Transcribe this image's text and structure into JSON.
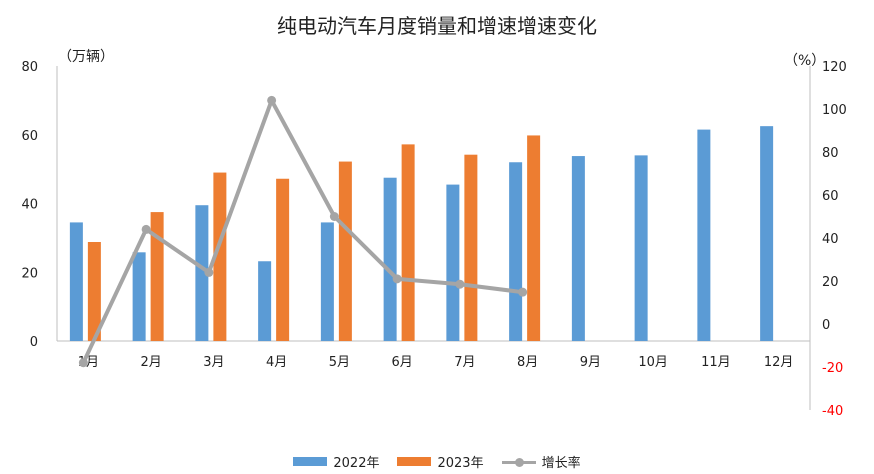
{
  "chart_data": {
    "type": "bar+line",
    "title": "纯电动汽车月度销量和增速增速变化",
    "ylabel_left": "（万辆）",
    "ylabel_right": "（%）",
    "categories": [
      "1月",
      "2月",
      "3月",
      "4月",
      "5月",
      "6月",
      "7月",
      "8月",
      "9月",
      "10月",
      "11月",
      "12月"
    ],
    "series": [
      {
        "name": "2022年",
        "type": "bar",
        "axis": "left",
        "color": "#5B9BD5",
        "values": [
          34.5,
          25.8,
          39.5,
          23.2,
          34.5,
          47.5,
          45.5,
          52.0,
          53.8,
          54.0,
          61.5,
          62.5
        ]
      },
      {
        "name": "2023年",
        "type": "bar",
        "axis": "left",
        "color": "#ED7D31",
        "values": [
          28.8,
          37.5,
          49.0,
          47.2,
          52.2,
          57.2,
          54.2,
          59.8,
          null,
          null,
          null,
          null
        ]
      },
      {
        "name": "增长率",
        "type": "line",
        "axis": "right",
        "color": "#A5A5A5",
        "values": [
          -18,
          44,
          24,
          104,
          50,
          21,
          18.5,
          14.8,
          null,
          null,
          null,
          null
        ]
      }
    ],
    "ylim_left": [
      0,
      80
    ],
    "yticks_left": [
      0,
      20,
      40,
      60,
      80
    ],
    "ylim_right": [
      -40,
      120
    ],
    "yticks_right": [
      -40,
      -20,
      0,
      20,
      40,
      60,
      80,
      100,
      120
    ],
    "negative_tick_color": "#FF0000",
    "grid": false,
    "legend_position": "bottom"
  }
}
